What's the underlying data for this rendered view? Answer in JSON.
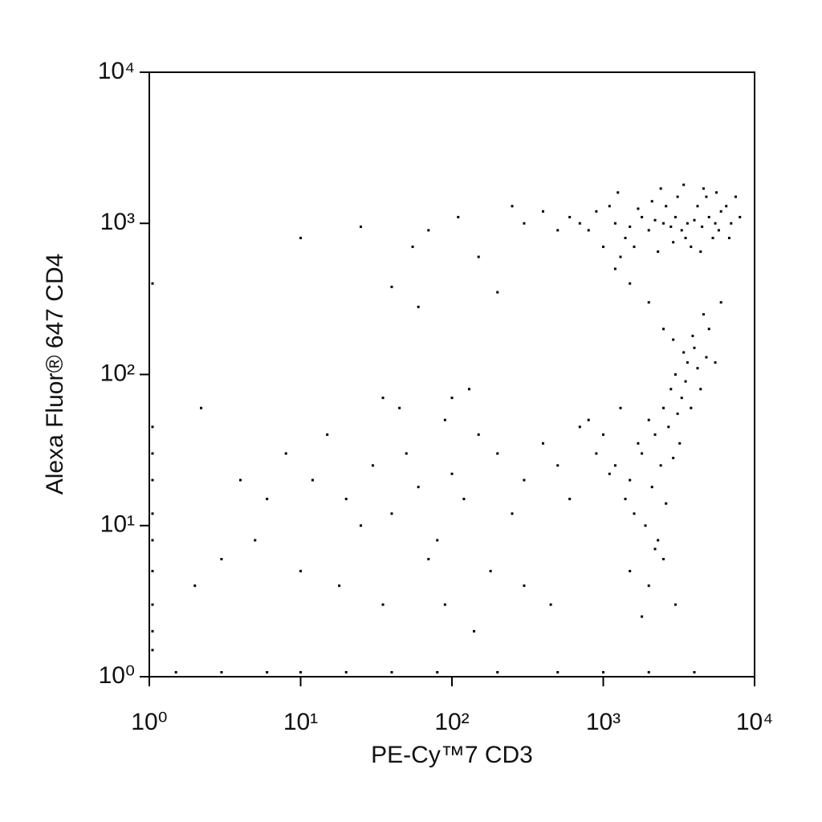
{
  "chart_data": {
    "type": "scatter",
    "x_label": "PE-Cy™7 CD3",
    "y_label": "Alexa Fluor® 647 CD4",
    "xscale": "log",
    "yscale": "log",
    "xlim": [
      1,
      10000
    ],
    "ylim": [
      1,
      10000
    ],
    "xticks": [
      {
        "value": 1,
        "label": "10⁰"
      },
      {
        "value": 10,
        "label": "10¹"
      },
      {
        "value": 100,
        "label": "10²"
      },
      {
        "value": 1000,
        "label": "10³"
      },
      {
        "value": 10000,
        "label": "10⁴"
      }
    ],
    "yticks": [
      {
        "value": 1,
        "label": "10⁰"
      },
      {
        "value": 10,
        "label": "10¹"
      },
      {
        "value": 100,
        "label": "10²"
      },
      {
        "value": 1000,
        "label": "10³"
      },
      {
        "value": 10000,
        "label": "10⁴"
      }
    ],
    "color": "#000000",
    "x": [
      1200,
      1500,
      1800,
      2000,
      2200,
      2500,
      2800,
      3000,
      3300,
      3600,
      4000,
      4500,
      5000,
      5500,
      6000,
      1100,
      1400,
      1700,
      2100,
      2600,
      3100,
      3500,
      4200,
      4800,
      5300,
      6500,
      7000,
      900,
      800,
      1000,
      1300,
      1600,
      2300,
      2900,
      3800,
      4400,
      5800,
      7500,
      1250,
      2400,
      3400,
      4600,
      5600,
      700,
      600,
      500,
      400,
      300,
      6800,
      8000,
      1500,
      1800,
      2000,
      2200,
      2500,
      2800,
      3000,
      3300,
      3600,
      4000,
      1200,
      1400,
      1700,
      2100,
      2400,
      2700,
      3100,
      3500,
      4200,
      4800,
      1000,
      1100,
      1600,
      1900,
      2300,
      2600,
      2900,
      3200,
      3800,
      4400,
      5000,
      4600,
      3900,
      3400,
      2900,
      1300,
      900,
      800,
      1500,
      2000,
      2500,
      3000,
      1800,
      2200,
      5500,
      6000,
      2000,
      1500,
      1200,
      2500,
      8,
      12,
      15,
      20,
      25,
      30,
      40,
      50,
      60,
      80,
      100,
      120,
      150,
      200,
      250,
      300,
      400,
      500,
      600,
      700,
      10,
      18,
      35,
      70,
      90,
      140,
      180,
      300,
      450,
      6,
      5,
      4,
      3,
      2,
      2.2,
      10,
      25,
      55,
      70,
      40,
      60,
      110,
      150,
      200,
      100,
      90,
      130,
      35,
      45,
      250,
      1.05,
      1.05,
      1.05,
      1.05,
      1.05,
      1.05,
      1.05,
      1.05,
      1.05,
      1.05,
      1.5,
      3,
      6,
      10,
      20,
      40,
      80,
      200,
      500,
      1000,
      2000,
      4000
    ],
    "values": [
      1000,
      950,
      1100,
      900,
      1050,
      1000,
      950,
      1100,
      900,
      1000,
      1050,
      950,
      1100,
      1000,
      1200,
      1300,
      800,
      1250,
      1400,
      1300,
      1500,
      800,
      1300,
      1500,
      800,
      1300,
      1000,
      1200,
      900,
      700,
      600,
      700,
      650,
      750,
      700,
      650,
      900,
      1500,
      1600,
      1700,
      1800,
      1700,
      1600,
      1000,
      1100,
      900,
      1200,
      1000,
      800,
      1100,
      20,
      30,
      50,
      40,
      60,
      80,
      100,
      70,
      120,
      150,
      25,
      15,
      35,
      18,
      25,
      45,
      55,
      90,
      110,
      130,
      40,
      22,
      12,
      10,
      8,
      14,
      28,
      35,
      60,
      80,
      200,
      250,
      180,
      140,
      170,
      60,
      30,
      50,
      5,
      4,
      6,
      3,
      2.5,
      7,
      120,
      300,
      300,
      400,
      500,
      200,
      30,
      20,
      40,
      15,
      10,
      25,
      12,
      30,
      18,
      8,
      22,
      15,
      40,
      30,
      12,
      20,
      35,
      25,
      15,
      45,
      5,
      4,
      3,
      6,
      3,
      2,
      5,
      4,
      3,
      15,
      8,
      20,
      6,
      4,
      60,
      800,
      950,
      700,
      900,
      380,
      280,
      1100,
      600,
      350,
      70,
      50,
      80,
      70,
      60,
      1300,
      1.5,
      2,
      3,
      5,
      8,
      12,
      20,
      30,
      45,
      400,
      1.07,
      1.07,
      1.07,
      1.07,
      1.07,
      1.07,
      1.07,
      1.07,
      1.07,
      1.07,
      1.07,
      1.07
    ]
  }
}
